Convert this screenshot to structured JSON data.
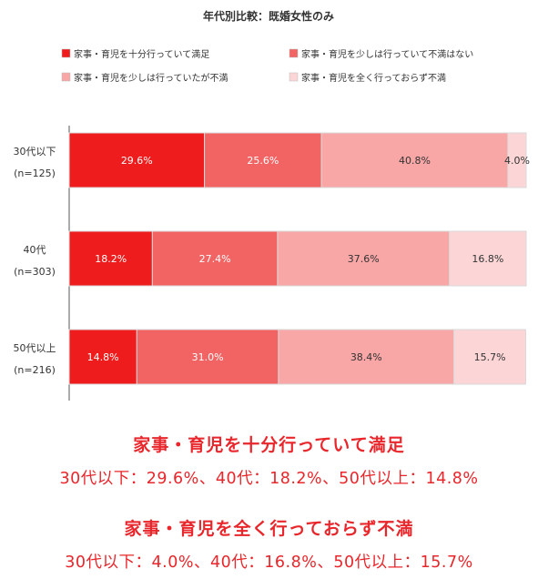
{
  "chart_data": {
    "type": "bar",
    "orientation": "horizontal",
    "stacked": true,
    "percent": true,
    "title": "年代別比較：既婚女性のみ",
    "categories": [
      "30代以下",
      "40代",
      "50代以上"
    ],
    "category_ns": [
      "(n=125)",
      "(n=303)",
      "(n=216)"
    ],
    "series": [
      {
        "name": "家事・育児を十分行っていて満足",
        "color": "#ee1c1c",
        "values": [
          29.6,
          18.2,
          14.8
        ]
      },
      {
        "name": "家事・育児を少しは行っていて不満はない",
        "color": "#f26363",
        "values": [
          25.6,
          27.4,
          31.0
        ]
      },
      {
        "name": "家事・育児を少しは行っていたが不満",
        "color": "#f8a6a6",
        "values": [
          40.8,
          37.6,
          38.4
        ]
      },
      {
        "name": "家事・育児を全く行っておらず不満",
        "color": "#fcd6d6",
        "values": [
          4.0,
          16.8,
          15.7
        ]
      }
    ],
    "data_labels": [
      [
        "29.6%",
        "25.6%",
        "40.8%",
        "4.0%"
      ],
      [
        "18.2%",
        "27.4%",
        "37.6%",
        "16.8%"
      ],
      [
        "14.8%",
        "31.0%",
        "38.4%",
        "15.7%"
      ]
    ],
    "xlim": [
      0,
      100
    ],
    "legend_position": "top",
    "grid": false
  },
  "summary": [
    {
      "heading": "家事・育児を十分行っていて満足",
      "values": "30代以下：29.6%、40代：18.2%、50代以上：14.8%"
    },
    {
      "heading": "家事・育児を全く行っておらず不満",
      "values": "30代以下：4.0%、40代：16.8%、50代以上：15.7%"
    }
  ],
  "colors": {
    "accent": "#e8262b",
    "axis": "#555555",
    "label_light": "#ffffff",
    "label_dark": "#333333"
  }
}
